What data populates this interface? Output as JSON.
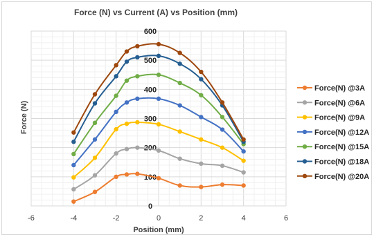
{
  "chart_data": {
    "type": "scatter",
    "title": "Force (N) vs Current (A) vs Position (mm)",
    "xlabel": "Position (mm)",
    "ylabel": "Force (N)",
    "xlim": [
      -6,
      6
    ],
    "ylim": [
      0,
      600
    ],
    "x_ticks": [
      -6,
      -4,
      -2,
      0,
      2,
      4,
      6
    ],
    "y_ticks": [
      0,
      100,
      200,
      300,
      400,
      500,
      600
    ],
    "grid": true,
    "legend_position": "right",
    "x": [
      -4,
      -3,
      -2,
      -1,
      0,
      1,
      2,
      3,
      4
    ],
    "series": [
      {
        "name": "Force(N) @3A",
        "color": "#ED7D31",
        "x": [
          -4,
          -3,
          -2,
          -1.5,
          -1,
          0,
          1,
          2,
          3,
          4
        ],
        "values": [
          15,
          48,
          100,
          108,
          110,
          95,
          70,
          65,
          73,
          70
        ]
      },
      {
        "name": "Force(N) @6A",
        "color": "#A5A5A5",
        "x": [
          -4,
          -3,
          -2,
          -1.5,
          -1,
          0,
          1,
          2,
          3,
          4
        ],
        "values": [
          57,
          105,
          180,
          195,
          200,
          190,
          162,
          145,
          138,
          115
        ]
      },
      {
        "name": "Force(N) @9A",
        "color": "#FFC000",
        "x": [
          -4,
          -3,
          -2,
          -1.5,
          -1,
          0,
          1,
          2,
          3,
          4
        ],
        "values": [
          98,
          165,
          263,
          282,
          287,
          280,
          255,
          228,
          200,
          155
        ]
      },
      {
        "name": "Force(N) @12A",
        "color": "#4472C4",
        "x": [
          -4,
          -3,
          -2,
          -1.5,
          -1,
          0,
          1,
          2,
          3,
          4
        ],
        "values": [
          140,
          228,
          323,
          355,
          368,
          368,
          345,
          305,
          262,
          187
        ]
      },
      {
        "name": "Force(N) @15A",
        "color": "#70AD47",
        "x": [
          -4,
          -3,
          -2,
          -1.5,
          -1,
          0,
          1,
          2,
          3,
          4
        ],
        "values": [
          178,
          285,
          378,
          430,
          445,
          450,
          422,
          380,
          305,
          212
        ]
      },
      {
        "name": "Force(N) @18A",
        "color": "#255E91",
        "x": [
          -4,
          -3,
          -2,
          -1.5,
          -1,
          0,
          1,
          2,
          3,
          4
        ],
        "values": [
          220,
          352,
          445,
          495,
          510,
          515,
          488,
          435,
          345,
          220
        ]
      },
      {
        "name": "Force(N) @20A",
        "color": "#9E480E",
        "x": [
          -4,
          -3,
          -2,
          -1.5,
          -1,
          0,
          1,
          2,
          3,
          4
        ],
        "values": [
          252,
          383,
          483,
          530,
          548,
          555,
          525,
          460,
          355,
          228
        ]
      }
    ]
  }
}
